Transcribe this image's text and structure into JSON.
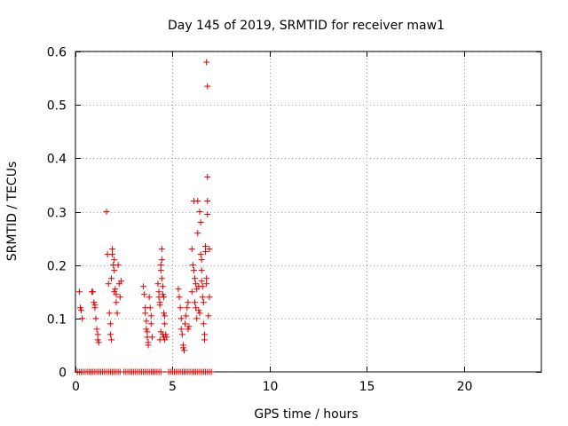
{
  "chart_data": {
    "type": "scatter",
    "title": "Day 145 of 2019, SRMTID for receiver maw1",
    "xlabel": "GPS time / hours",
    "ylabel": "SRMTID / TECUs",
    "xlim": [
      0,
      24
    ],
    "ylim": [
      0,
      0.6
    ],
    "xticks": [
      "0",
      "5",
      "10",
      "15",
      "20"
    ],
    "xtick_values": [
      0,
      5,
      10,
      15,
      20
    ],
    "yticks": [
      "0",
      "0.1",
      "0.2",
      "0.3",
      "0.4",
      "0.5",
      "0.6"
    ],
    "ytick_values": [
      0,
      0.1,
      0.2,
      0.3,
      0.4,
      0.5,
      0.6
    ],
    "grid": true,
    "marker": "+",
    "color": "#dd0000",
    "series": [
      {
        "name": "maw1",
        "points": [
          [
            0.2,
            0.15
          ],
          [
            0.25,
            0.12
          ],
          [
            0.3,
            0.115
          ],
          [
            0.35,
            0.1
          ],
          [
            0.85,
            0.15
          ],
          [
            0.9,
            0.15
          ],
          [
            0.95,
            0.13
          ],
          [
            1.0,
            0.125
          ],
          [
            1.0,
            0.12
          ],
          [
            1.05,
            0.1
          ],
          [
            1.1,
            0.08
          ],
          [
            1.15,
            0.07
          ],
          [
            1.15,
            0.06
          ],
          [
            1.2,
            0.055
          ],
          [
            1.6,
            0.3
          ],
          [
            1.65,
            0.22
          ],
          [
            1.7,
            0.165
          ],
          [
            1.75,
            0.11
          ],
          [
            1.8,
            0.09
          ],
          [
            1.8,
            0.07
          ],
          [
            1.85,
            0.06
          ],
          [
            1.85,
            0.175
          ],
          [
            1.9,
            0.23
          ],
          [
            1.9,
            0.22
          ],
          [
            1.95,
            0.2
          ],
          [
            2.0,
            0.21
          ],
          [
            2.0,
            0.19
          ],
          [
            2.0,
            0.15
          ],
          [
            2.05,
            0.155
          ],
          [
            2.1,
            0.145
          ],
          [
            2.1,
            0.13
          ],
          [
            2.15,
            0.11
          ],
          [
            2.2,
            0.2
          ],
          [
            2.25,
            0.165
          ],
          [
            2.3,
            0.14
          ],
          [
            2.35,
            0.17
          ],
          [
            3.5,
            0.16
          ],
          [
            3.55,
            0.145
          ],
          [
            3.6,
            0.12
          ],
          [
            3.6,
            0.11
          ],
          [
            3.65,
            0.095
          ],
          [
            3.65,
            0.08
          ],
          [
            3.7,
            0.075
          ],
          [
            3.7,
            0.065
          ],
          [
            3.75,
            0.055
          ],
          [
            3.75,
            0.05
          ],
          [
            3.8,
            0.14
          ],
          [
            3.85,
            0.12
          ],
          [
            3.9,
            0.105
          ],
          [
            3.9,
            0.09
          ],
          [
            3.95,
            0.065
          ],
          [
            4.25,
            0.165
          ],
          [
            4.3,
            0.15
          ],
          [
            4.3,
            0.14
          ],
          [
            4.35,
            0.13
          ],
          [
            4.35,
            0.125
          ],
          [
            4.4,
            0.19
          ],
          [
            4.4,
            0.2
          ],
          [
            4.45,
            0.23
          ],
          [
            4.45,
            0.21
          ],
          [
            4.45,
            0.175
          ],
          [
            4.5,
            0.16
          ],
          [
            4.5,
            0.145
          ],
          [
            4.55,
            0.14
          ],
          [
            4.55,
            0.11
          ],
          [
            4.6,
            0.105
          ],
          [
            4.6,
            0.09
          ],
          [
            4.4,
            0.075
          ],
          [
            4.5,
            0.07
          ],
          [
            4.55,
            0.065
          ],
          [
            4.6,
            0.06
          ],
          [
            4.65,
            0.07
          ],
          [
            4.7,
            0.065
          ],
          [
            4.35,
            0.06
          ],
          [
            5.3,
            0.155
          ],
          [
            5.35,
            0.14
          ],
          [
            5.4,
            0.12
          ],
          [
            5.45,
            0.1
          ],
          [
            5.45,
            0.08
          ],
          [
            5.5,
            0.07
          ],
          [
            5.55,
            0.05
          ],
          [
            5.55,
            0.045
          ],
          [
            5.6,
            0.04
          ],
          [
            5.65,
            0.09
          ],
          [
            5.7,
            0.105
          ],
          [
            5.75,
            0.12
          ],
          [
            5.8,
            0.13
          ],
          [
            5.8,
            0.08
          ],
          [
            5.85,
            0.085
          ],
          [
            6.0,
            0.23
          ],
          [
            6.05,
            0.2
          ],
          [
            6.1,
            0.19
          ],
          [
            6.1,
            0.32
          ],
          [
            6.15,
            0.175
          ],
          [
            6.2,
            0.165
          ],
          [
            6.25,
            0.155
          ],
          [
            6.3,
            0.32
          ],
          [
            6.3,
            0.26
          ],
          [
            6.35,
            0.16
          ],
          [
            6.35,
            0.115
          ],
          [
            6.4,
            0.11
          ],
          [
            6.4,
            0.3
          ],
          [
            6.45,
            0.28
          ],
          [
            6.45,
            0.22
          ],
          [
            6.5,
            0.21
          ],
          [
            6.5,
            0.19
          ],
          [
            6.5,
            0.17
          ],
          [
            6.55,
            0.16
          ],
          [
            6.55,
            0.14
          ],
          [
            6.6,
            0.13
          ],
          [
            6.6,
            0.09
          ],
          [
            6.65,
            0.07
          ],
          [
            6.65,
            0.06
          ],
          [
            6.7,
            0.235
          ],
          [
            6.7,
            0.225
          ],
          [
            6.75,
            0.175
          ],
          [
            6.75,
            0.165
          ],
          [
            6.8,
            0.365
          ],
          [
            6.8,
            0.32
          ],
          [
            6.8,
            0.295
          ],
          [
            6.75,
            0.58
          ],
          [
            6.8,
            0.535
          ],
          [
            6.2,
            0.12
          ],
          [
            6.25,
            0.1
          ],
          [
            6.15,
            0.13
          ],
          [
            6.0,
            0.15
          ],
          [
            6.9,
            0.23
          ],
          [
            6.9,
            0.14
          ],
          [
            6.85,
            0.105
          ],
          [
            0.1,
            0
          ],
          [
            0.2,
            0
          ],
          [
            0.3,
            0
          ],
          [
            0.4,
            0
          ],
          [
            0.5,
            0
          ],
          [
            0.6,
            0
          ],
          [
            0.7,
            0
          ],
          [
            0.8,
            0
          ],
          [
            0.9,
            0
          ],
          [
            1.0,
            0
          ],
          [
            1.1,
            0
          ],
          [
            1.2,
            0
          ],
          [
            1.3,
            0
          ],
          [
            1.4,
            0
          ],
          [
            1.5,
            0
          ],
          [
            1.6,
            0
          ],
          [
            1.7,
            0
          ],
          [
            1.8,
            0
          ],
          [
            1.9,
            0
          ],
          [
            2.0,
            0
          ],
          [
            2.1,
            0
          ],
          [
            2.2,
            0
          ],
          [
            2.3,
            0
          ],
          [
            2.5,
            0
          ],
          [
            2.6,
            0
          ],
          [
            2.7,
            0
          ],
          [
            2.8,
            0
          ],
          [
            2.9,
            0
          ],
          [
            3.0,
            0
          ],
          [
            3.1,
            0
          ],
          [
            3.2,
            0
          ],
          [
            3.3,
            0
          ],
          [
            3.4,
            0
          ],
          [
            3.5,
            0
          ],
          [
            3.6,
            0
          ],
          [
            3.7,
            0
          ],
          [
            3.8,
            0
          ],
          [
            3.9,
            0
          ],
          [
            4.0,
            0
          ],
          [
            4.1,
            0
          ],
          [
            4.2,
            0
          ],
          [
            4.3,
            0
          ],
          [
            4.4,
            0
          ],
          [
            4.8,
            0
          ],
          [
            4.9,
            0
          ],
          [
            5.0,
            0
          ],
          [
            5.1,
            0
          ],
          [
            5.2,
            0
          ],
          [
            5.3,
            0
          ],
          [
            5.4,
            0
          ],
          [
            5.5,
            0
          ],
          [
            5.6,
            0
          ],
          [
            5.7,
            0
          ],
          [
            5.8,
            0
          ],
          [
            5.9,
            0
          ],
          [
            6.0,
            0
          ],
          [
            6.1,
            0
          ],
          [
            6.2,
            0
          ],
          [
            6.3,
            0
          ],
          [
            6.4,
            0
          ],
          [
            6.5,
            0
          ],
          [
            6.6,
            0
          ],
          [
            6.7,
            0
          ],
          [
            6.8,
            0
          ],
          [
            6.9,
            0
          ],
          [
            7.0,
            0
          ]
        ]
      }
    ]
  }
}
